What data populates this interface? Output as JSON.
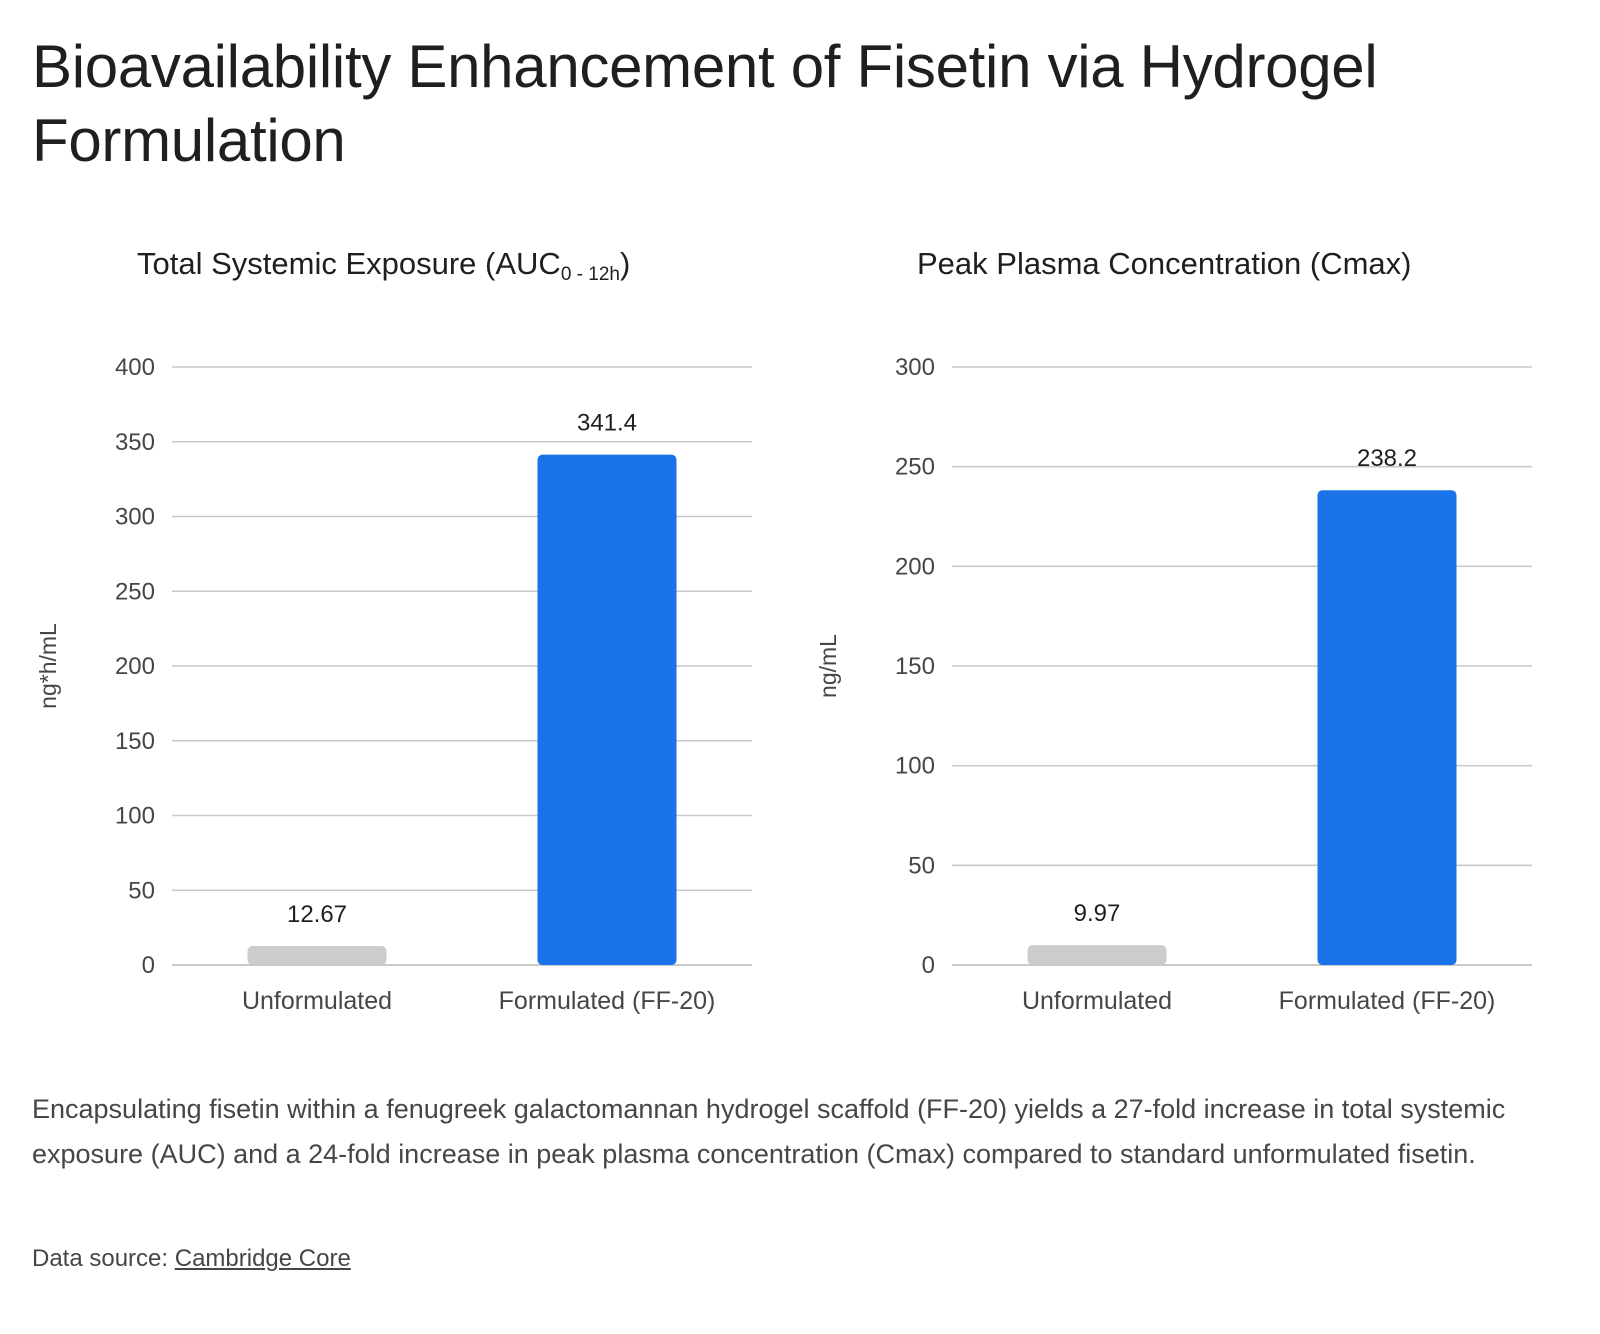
{
  "title": "Bioavailability Enhancement of Fisetin via Hydrogel Formulation",
  "chart_data": [
    {
      "type": "bar",
      "title": "Total Systemic Exposure (AUC",
      "title_subscript": "0 - 12h",
      "title_suffix": ")",
      "categories": [
        "Unformulated",
        "Formulated (FF-20)"
      ],
      "values": [
        12.67,
        341.4
      ],
      "value_labels": [
        "12.67",
        "341.4"
      ],
      "colors": [
        "#cccccc",
        "#1a73e8"
      ],
      "xlabel": "",
      "ylabel": "ng*h/mL",
      "ylim": [
        0,
        400
      ],
      "yticks": [
        0,
        50,
        100,
        150,
        200,
        250,
        300,
        350,
        400
      ],
      "grid": true,
      "legend": "none"
    },
    {
      "type": "bar",
      "title": "Peak Plasma Concentration (Cmax)",
      "title_subscript": "",
      "title_suffix": "",
      "categories": [
        "Unformulated",
        "Formulated (FF-20)"
      ],
      "values": [
        9.97,
        238.2
      ],
      "value_labels": [
        "9.97",
        "238.2"
      ],
      "colors": [
        "#cccccc",
        "#1a73e8"
      ],
      "xlabel": "",
      "ylabel": "ng/mL",
      "ylim": [
        0,
        300
      ],
      "yticks": [
        0,
        50,
        100,
        150,
        200,
        250,
        300
      ],
      "grid": true,
      "legend": "none"
    }
  ],
  "caption": "Encapsulating fisetin within a fenugreek galactomannan hydrogel scaffold (FF-20) yields a 27-fold increase in total systemic exposure (AUC) and a 24-fold increase in peak plasma concentration (Cmax) compared to standard unformulated fisetin.",
  "source": {
    "prefix": "Data source: ",
    "link_text": "Cambridge Core"
  }
}
